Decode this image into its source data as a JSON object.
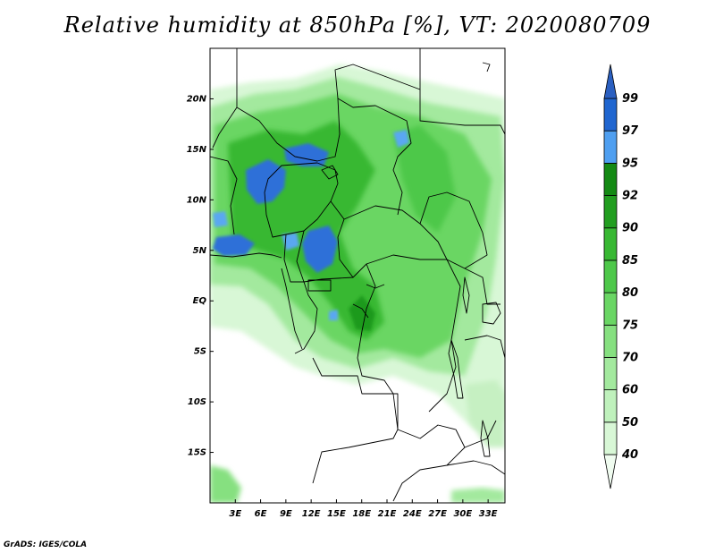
{
  "title": "Relative humidity at 850hPa [%], VT: 2020080709",
  "credit": "GrADS: IGES/COLA",
  "map": {
    "lon_range": [
      0,
      35
    ],
    "lat_range": [
      -20,
      25
    ],
    "x_ticks": [
      "3E",
      "6E",
      "9E",
      "12E",
      "15E",
      "18E",
      "21E",
      "24E",
      "27E",
      "30E",
      "33E"
    ],
    "x_tick_values": [
      3,
      6,
      9,
      12,
      15,
      18,
      21,
      24,
      27,
      30,
      33
    ],
    "y_ticks": [
      "20N",
      "15N",
      "10N",
      "5N",
      "EQ",
      "5S",
      "10S",
      "15S"
    ],
    "y_tick_values": [
      20,
      15,
      10,
      5,
      0,
      -5,
      -10,
      -15
    ]
  },
  "colorbar": {
    "levels": [
      "40",
      "50",
      "60",
      "70",
      "75",
      "80",
      "85",
      "90",
      "92",
      "95",
      "97",
      "99"
    ],
    "colors": [
      "#f0fcf0",
      "#d8f7d6",
      "#bff1bc",
      "#a3e99e",
      "#86e080",
      "#6ad664",
      "#4ec84a",
      "#38b833",
      "#229e20",
      "#148a14",
      "#4f9ff0",
      "#2066d0",
      "#2a5fc0"
    ]
  },
  "colors": {
    "very_humid": "#2f6fd8",
    "humid": "#5aa7f2",
    "moist_dark": "#1f9a1f",
    "moist": "#53c84f",
    "moderate": "#8ddb88",
    "dry": "#c6f0c2",
    "border": "#000000"
  }
}
